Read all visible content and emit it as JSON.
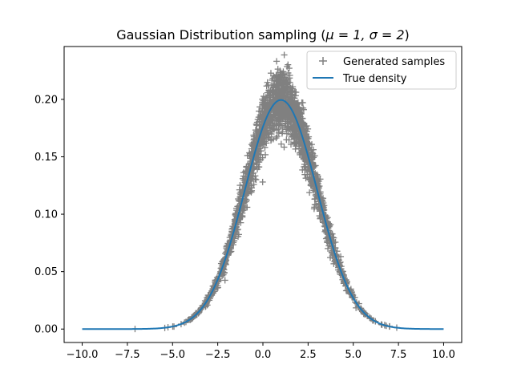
{
  "chart_data": {
    "type": "scatter",
    "title": "Gaussian Distribution sampling (",
    "title_math": "μ = 1, σ = 2",
    "title_close": ")",
    "xlabel": "",
    "ylabel": "",
    "xlim": [
      -11.0,
      11.0
    ],
    "ylim": [
      -0.0117,
      0.246
    ],
    "xticks": [
      -10.0,
      -7.5,
      -5.0,
      -2.5,
      0.0,
      2.5,
      5.0,
      7.5,
      10.0
    ],
    "xtick_labels": [
      "−10.0",
      "−7.5",
      "−5.0",
      "−2.5",
      "0.0",
      "2.5",
      "5.0",
      "7.5",
      "10.0"
    ],
    "yticks": [
      0.0,
      0.05,
      0.1,
      0.15,
      0.2
    ],
    "ytick_labels": [
      "0.00",
      "0.05",
      "0.10",
      "0.15",
      "0.20"
    ],
    "grid": false,
    "legend_position": "top-right",
    "series": [
      {
        "name": "Generated samples",
        "kind": "scatter",
        "marker": "plus",
        "color": "#808080",
        "mu": 1,
        "sigma": 2,
        "x_range": [
          -7.8,
          8.8
        ],
        "noise_fraction": 0.07,
        "n_points": 2000
      },
      {
        "name": "True density",
        "kind": "line",
        "color": "#1f77b4",
        "mu": 1,
        "sigma": 2,
        "x_range": [
          -10.0,
          10.0
        ]
      }
    ]
  }
}
